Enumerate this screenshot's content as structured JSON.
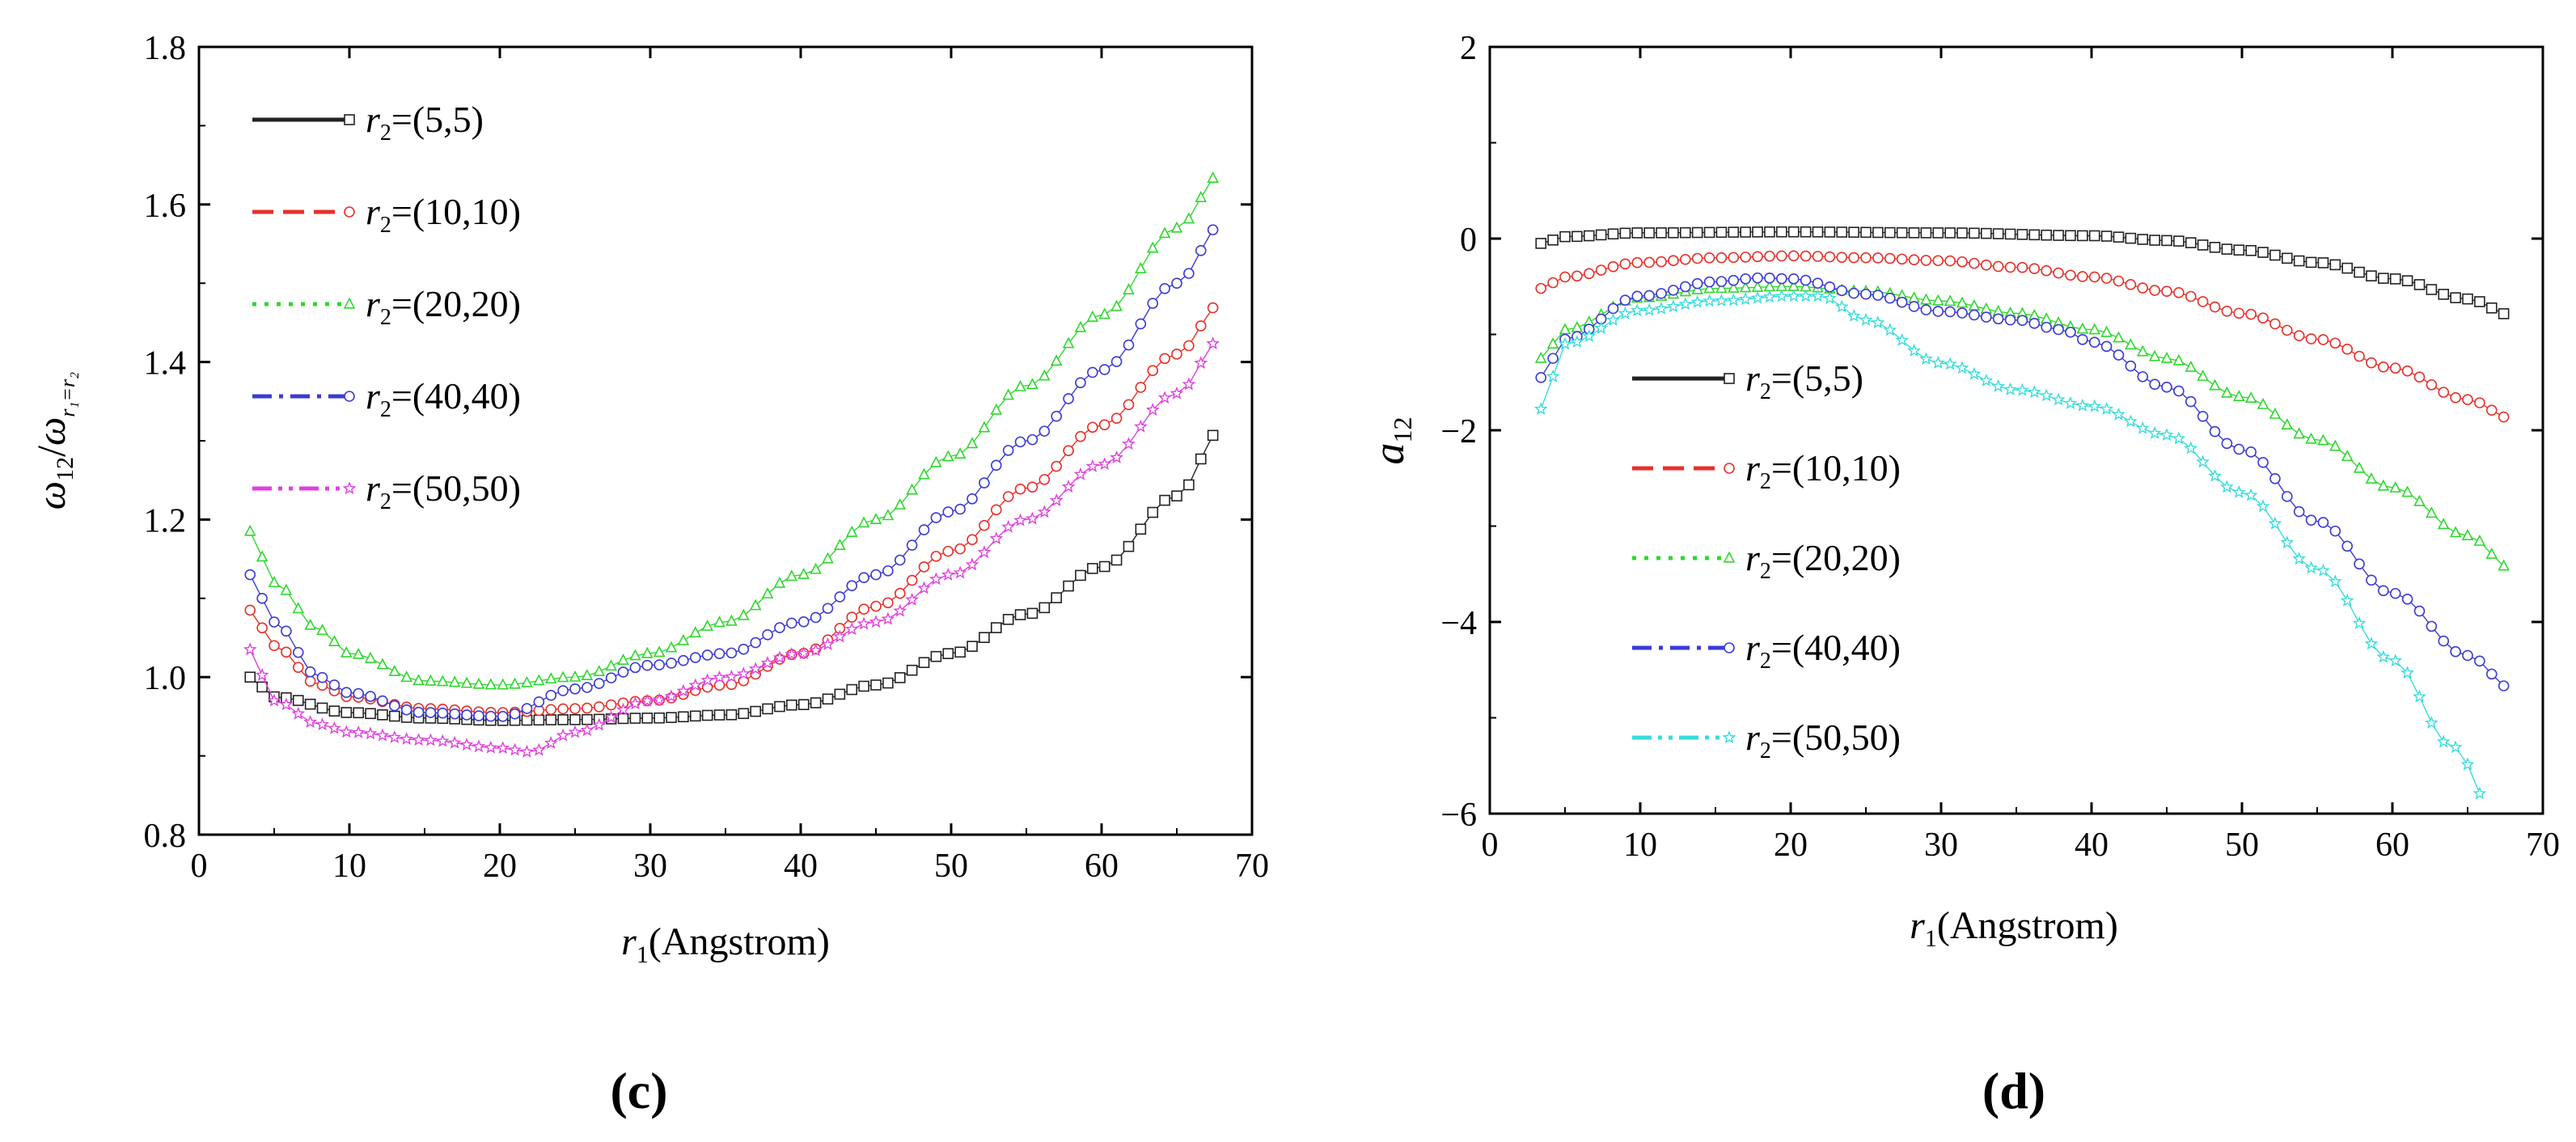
{
  "figure": {
    "panel_labels": [
      "(c)",
      "(d)"
    ]
  },
  "chart_data": [
    {
      "id": "c",
      "type": "line",
      "title": "",
      "xlabel_var": "r",
      "xlabel_sub": "1",
      "xlabel_rest": "(Angstrom)",
      "ylabel": "ω₁₂/ω r₁=r₂",
      "ylabel_main": "ω",
      "ylabel_main_sub": "12",
      "ylabel_slash": "/",
      "ylabel_den": "ω",
      "ylabel_den_sub": "r₁=r₂",
      "xlim": [
        0,
        70
      ],
      "ylim": [
        0.8,
        1.8
      ],
      "xticks": [
        0,
        10,
        20,
        30,
        40,
        50,
        60,
        70
      ],
      "yticks": [
        0.8,
        1.0,
        1.2,
        1.4,
        1.6,
        1.8
      ],
      "xtick_labels": [
        "0",
        "10",
        "20",
        "30",
        "40",
        "50",
        "60",
        "70"
      ],
      "ytick_labels": [
        "0.8",
        "1.0",
        "1.2",
        "1.4",
        "1.6",
        "1.8"
      ],
      "legend_position": "top-left",
      "series": [
        {
          "name": "r2=(5,5)",
          "legend_var": "r",
          "legend_sub": "2",
          "legend_rest": "=(5,5)",
          "color": "#222222",
          "dash": "solid",
          "marker": "square",
          "points": [
            [
              3.4,
              1.0
            ],
            [
              5,
              0.975
            ],
            [
              10,
              0.955
            ],
            [
              15,
              0.948
            ],
            [
              20,
              0.945
            ],
            [
              25,
              0.946
            ],
            [
              30,
              0.948
            ],
            [
              35,
              0.952
            ],
            [
              40,
              0.965
            ],
            [
              45,
              0.99
            ],
            [
              50,
              1.03
            ],
            [
              55,
              1.08
            ],
            [
              60,
              1.14
            ],
            [
              65,
              1.23
            ],
            [
              68,
              1.315
            ]
          ]
        },
        {
          "name": "r2=(10,10)",
          "legend_var": "r",
          "legend_sub": "2",
          "legend_rest": "=(10,10)",
          "color": "#e8302a",
          "dash": "dashed",
          "marker": "circle",
          "points": [
            [
              3.4,
              1.085
            ],
            [
              5,
              1.04
            ],
            [
              8,
              0.99
            ],
            [
              10,
              0.975
            ],
            [
              15,
              0.96
            ],
            [
              20,
              0.955
            ],
            [
              25,
              0.96
            ],
            [
              30,
              0.97
            ],
            [
              35,
              0.99
            ],
            [
              40,
              1.03
            ],
            [
              45,
              1.09
            ],
            [
              50,
              1.16
            ],
            [
              55,
              1.24
            ],
            [
              60,
              1.32
            ],
            [
              65,
              1.41
            ],
            [
              68,
              1.475
            ]
          ]
        },
        {
          "name": "r2=(20,20)",
          "legend_var": "r",
          "legend_sub": "2",
          "legend_rest": "=(20,20)",
          "color": "#2ed82e",
          "dash": "dotted",
          "marker": "triangle",
          "points": [
            [
              3.4,
              1.185
            ],
            [
              5,
              1.12
            ],
            [
              8,
              1.06
            ],
            [
              10,
              1.03
            ],
            [
              15,
              0.995
            ],
            [
              20,
              0.99
            ],
            [
              25,
              1.0
            ],
            [
              30,
              1.03
            ],
            [
              35,
              1.07
            ],
            [
              40,
              1.13
            ],
            [
              45,
              1.2
            ],
            [
              50,
              1.28
            ],
            [
              55,
              1.37
            ],
            [
              60,
              1.46
            ],
            [
              65,
              1.57
            ],
            [
              68,
              1.64
            ]
          ]
        },
        {
          "name": "r2=(40,40)",
          "legend_var": "r",
          "legend_sub": "2",
          "legend_rest": "=(40,40)",
          "color": "#3b3bd6",
          "dash": "dashdot",
          "marker": "circle",
          "points": [
            [
              3.4,
              1.13
            ],
            [
              5,
              1.07
            ],
            [
              8,
              1.0
            ],
            [
              10,
              0.98
            ],
            [
              15,
              0.955
            ],
            [
              20,
              0.95
            ],
            [
              25,
              0.985
            ],
            [
              30,
              1.015
            ],
            [
              35,
              1.03
            ],
            [
              40,
              1.07
            ],
            [
              45,
              1.13
            ],
            [
              50,
              1.21
            ],
            [
              55,
              1.3
            ],
            [
              60,
              1.39
            ],
            [
              65,
              1.5
            ],
            [
              68,
              1.575
            ]
          ]
        },
        {
          "name": "r2=(50,50)",
          "legend_var": "r",
          "legend_sub": "2",
          "legend_rest": "=(50,50)",
          "color": "#e040e0",
          "dash": "dashdotdot",
          "marker": "star",
          "points": [
            [
              3.4,
              1.035
            ],
            [
              5,
              0.97
            ],
            [
              8,
              0.94
            ],
            [
              10,
              0.93
            ],
            [
              15,
              0.92
            ],
            [
              20,
              0.91
            ],
            [
              22,
              0.905
            ],
            [
              25,
              0.93
            ],
            [
              30,
              0.97
            ],
            [
              35,
              1.0
            ],
            [
              40,
              1.03
            ],
            [
              45,
              1.07
            ],
            [
              50,
              1.13
            ],
            [
              55,
              1.2
            ],
            [
              60,
              1.27
            ],
            [
              65,
              1.36
            ],
            [
              68,
              1.43
            ]
          ]
        }
      ]
    },
    {
      "id": "d",
      "type": "line",
      "title": "",
      "xlabel_var": "r",
      "xlabel_sub": "1",
      "xlabel_rest": "(Angstrom)",
      "ylabel": "a₁₂",
      "ylabel_main": "a",
      "ylabel_main_sub": "12",
      "xlim": [
        0,
        70
      ],
      "ylim": [
        -6,
        2
      ],
      "xticks": [
        0,
        10,
        20,
        30,
        40,
        50,
        60,
        70
      ],
      "yticks": [
        -6,
        -4,
        -2,
        0,
        2
      ],
      "xtick_labels": [
        "0",
        "10",
        "20",
        "30",
        "40",
        "50",
        "60",
        "70"
      ],
      "ytick_labels": [
        "−6",
        "−4",
        "−2",
        "0",
        "2"
      ],
      "legend_position": "center-left",
      "series": [
        {
          "name": "r2=(5,5)",
          "legend_var": "r",
          "legend_sub": "2",
          "legend_rest": "=(5,5)",
          "color": "#222222",
          "dash": "solid",
          "marker": "square",
          "points": [
            [
              3.4,
              -0.05
            ],
            [
              5,
              0.02
            ],
            [
              10,
              0.06
            ],
            [
              20,
              0.07
            ],
            [
              30,
              0.06
            ],
            [
              40,
              0.03
            ],
            [
              45,
              -0.02
            ],
            [
              50,
              -0.12
            ],
            [
              55,
              -0.25
            ],
            [
              60,
              -0.42
            ],
            [
              65,
              -0.63
            ],
            [
              68,
              -0.8
            ]
          ]
        },
        {
          "name": "r2=(10,10)",
          "legend_var": "r",
          "legend_sub": "2",
          "legend_rest": "=(10,10)",
          "color": "#e8302a",
          "dash": "dashed",
          "marker": "circle",
          "points": [
            [
              3.4,
              -0.52
            ],
            [
              5,
              -0.4
            ],
            [
              10,
              -0.25
            ],
            [
              15,
              -0.2
            ],
            [
              20,
              -0.18
            ],
            [
              25,
              -0.2
            ],
            [
              30,
              -0.23
            ],
            [
              35,
              -0.3
            ],
            [
              40,
              -0.4
            ],
            [
              45,
              -0.55
            ],
            [
              50,
              -0.78
            ],
            [
              55,
              -1.05
            ],
            [
              60,
              -1.35
            ],
            [
              65,
              -1.68
            ],
            [
              68,
              -1.88
            ]
          ]
        },
        {
          "name": "r2=(20,20)",
          "legend_var": "r",
          "legend_sub": "2",
          "legend_rest": "=(20,20)",
          "color": "#2ed82e",
          "dash": "dotted",
          "marker": "triangle",
          "points": [
            [
              3.4,
              -1.25
            ],
            [
              5,
              -0.95
            ],
            [
              10,
              -0.62
            ],
            [
              15,
              -0.52
            ],
            [
              20,
              -0.5
            ],
            [
              25,
              -0.55
            ],
            [
              30,
              -0.65
            ],
            [
              35,
              -0.78
            ],
            [
              40,
              -0.95
            ],
            [
              45,
              -1.25
            ],
            [
              50,
              -1.65
            ],
            [
              55,
              -2.1
            ],
            [
              60,
              -2.6
            ],
            [
              65,
              -3.1
            ],
            [
              68,
              -3.45
            ]
          ]
        },
        {
          "name": "r2=(40,40)",
          "legend_var": "r",
          "legend_sub": "2",
          "legend_rest": "=(40,40)",
          "color": "#3b3bd6",
          "dash": "dashdot",
          "marker": "circle",
          "points": [
            [
              3.4,
              -1.45
            ],
            [
              5,
              -1.05
            ],
            [
              10,
              -0.6
            ],
            [
              15,
              -0.45
            ],
            [
              18,
              -0.41
            ],
            [
              20,
              -0.42
            ],
            [
              25,
              -0.58
            ],
            [
              30,
              -0.76
            ],
            [
              35,
              -0.85
            ],
            [
              38,
              -0.95
            ],
            [
              40,
              -1.08
            ],
            [
              45,
              -1.55
            ],
            [
              50,
              -2.2
            ],
            [
              55,
              -2.95
            ],
            [
              60,
              -3.7
            ],
            [
              65,
              -4.35
            ],
            [
              68,
              -4.7
            ]
          ]
        },
        {
          "name": "r2=(50,50)",
          "legend_var": "r",
          "legend_sub": "2",
          "legend_rest": "=(50,50)",
          "color": "#37dcdc",
          "dash": "dashdotdot",
          "marker": "star",
          "points": [
            [
              3.4,
              -1.78
            ],
            [
              5,
              -1.1
            ],
            [
              10,
              -0.75
            ],
            [
              15,
              -0.65
            ],
            [
              20,
              -0.6
            ],
            [
              22,
              -0.6
            ],
            [
              25,
              -0.85
            ],
            [
              30,
              -1.3
            ],
            [
              35,
              -1.58
            ],
            [
              40,
              -1.75
            ],
            [
              45,
              -2.05
            ],
            [
              50,
              -2.65
            ],
            [
              55,
              -3.45
            ],
            [
              60,
              -4.4
            ],
            [
              64,
              -5.3
            ],
            [
              67,
              -6.05
            ]
          ]
        }
      ]
    }
  ]
}
